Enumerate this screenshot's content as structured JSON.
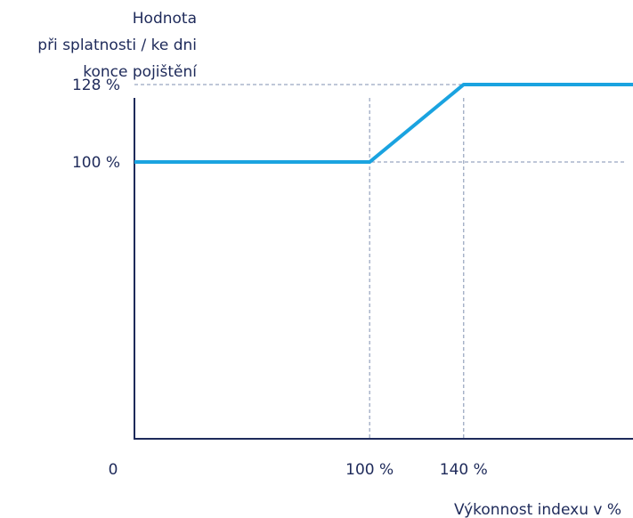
{
  "chart_data": {
    "type": "line",
    "ylabel_lines": [
      "Hodnota",
      "při splatnosti / ke dni",
      "konce pojištění"
    ],
    "xlabel": "Výkonnost indexu v %",
    "origin_label": "0",
    "xticks": [
      {
        "value": 100,
        "label": "100 %"
      },
      {
        "value": 140,
        "label": "140 %"
      }
    ],
    "yticks": [
      {
        "value": 100,
        "label": "100 %"
      },
      {
        "value": 128,
        "label": "128 %"
      }
    ],
    "xlim": [
      0,
      212
    ],
    "ylim": [
      0,
      155
    ],
    "series": [
      {
        "points": [
          {
            "x": 0,
            "y": 100
          },
          {
            "x": 100,
            "y": 100
          },
          {
            "x": 140,
            "y": 128
          },
          {
            "x": 212,
            "y": 128
          }
        ],
        "color": "#1aa3e0"
      }
    ],
    "grid": false
  }
}
